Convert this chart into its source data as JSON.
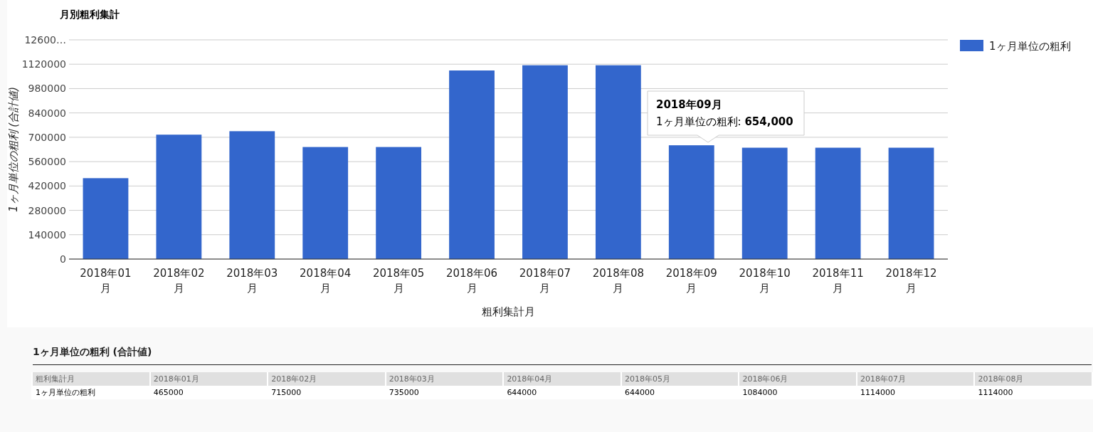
{
  "chart_data": [
    {
      "type": "bar",
      "title": "月別粗利集計",
      "xlabel": "粗利集計月",
      "ylabel": "1ヶ月単位の粗利 (合計値)",
      "categories": [
        "2018年01月",
        "2018年02月",
        "2018年03月",
        "2018年04月",
        "2018年05月",
        "2018年06月",
        "2018年07月",
        "2018年08月",
        "2018年09月",
        "2018年10月",
        "2018年11月",
        "2018年12月"
      ],
      "series": [
        {
          "name": "1ヶ月単位の粗利",
          "color": "#3366cc",
          "values": [
            465000,
            715000,
            735000,
            644000,
            644000,
            1084000,
            1114000,
            1114000,
            654000,
            640000,
            640000,
            640000
          ]
        }
      ],
      "ylim": [
        0,
        1260000
      ],
      "yticks": [
        0,
        140000,
        280000,
        420000,
        560000,
        700000,
        840000,
        980000,
        1120000,
        {
          "value": 1260000,
          "label": "12600…"
        }
      ],
      "grid": "y",
      "legend": "top right",
      "annotations": [
        "2018年09月",
        "1ヶ月単位の粗利: **654,000**"
      ]
    },
    {
      "type": "other",
      "title": "1ヶ月単位の粗利 (合計値)",
      "annotations": [
        "粗利集計月",
        "2018年01月",
        "2018年02月",
        "2018年03月",
        "2018年04月",
        "2018年05月",
        "2018年06月",
        "2018年07月",
        "2018年08月",
        "1ヶ月単位の粗利",
        "465000",
        "715000",
        "735000",
        "644000",
        "644000",
        "1084000",
        "1114000",
        "1114000"
      ]
    }
  ]
}
